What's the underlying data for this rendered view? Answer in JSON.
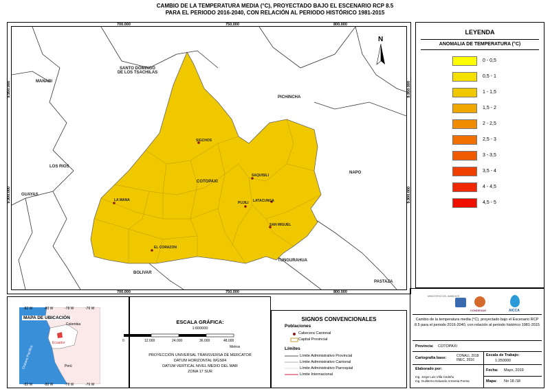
{
  "title_line1": "CAMBIO DE LA TEMPERATURA MEDIA (°C),  PROYECTADO BAJO EL ESCENARIO RCP 8.5",
  "title_line2": "PARA EL PERIODO 2016-2040, CON RELACIÓN AL PERIODO HISTÓRICO 1981-2015",
  "coords": {
    "top": [
      "700.000",
      "750.000",
      "800.000"
    ],
    "bottom": [
      "700.000",
      "750.000",
      "800.000"
    ],
    "left": [
      "9.950.000",
      "9.900.000"
    ],
    "right": [
      "9.950.000",
      "9.900.000"
    ]
  },
  "north": "N",
  "map_labels": {
    "santo_domingo": "SANTO DOMINGO\nDE LOS TSACHILAS",
    "manabi": "MANABI",
    "pichincha": "PICHINCHA",
    "los_rios": "LOS RIOS",
    "guayas": "GUAYAS",
    "napo": "NAPO",
    "cotopaxi": "COTOPAXI",
    "tungurahua": "TUNGURAHUA",
    "bolivar": "BOLIVAR",
    "pastaza": "PASTAZA"
  },
  "cities": {
    "sigchos": "SIGCHOS",
    "saquisili": "SAQUISILI",
    "la_mana": "LA MANA",
    "pujili": "PUJILI",
    "latacunga": "LATACUNGA",
    "san_miguel": "SAN MIGUEL",
    "el_corazon": "EL CORAZON"
  },
  "legend": {
    "title": "LEYENDA",
    "subtitle": "ANOMALIA DE TEMPERATURA (°C)",
    "items": [
      {
        "label": "0 - 0,5",
        "color": "#ffff00"
      },
      {
        "label": "0,5 - 1",
        "color": "#f5e100"
      },
      {
        "label": "1 - 1,5",
        "color": "#f0c800"
      },
      {
        "label": "1,5 - 2",
        "color": "#f0a800"
      },
      {
        "label": "2 - 2,5",
        "color": "#f08c00"
      },
      {
        "label": "2,5 - 3",
        "color": "#f07000"
      },
      {
        "label": "3 - 3,5",
        "color": "#f05a00"
      },
      {
        "label": "3,5 - 4",
        "color": "#f04000"
      },
      {
        "label": "4 - 4,5",
        "color": "#f02800"
      },
      {
        "label": "4,5 - 5",
        "color": "#f01000"
      }
    ]
  },
  "location_map": {
    "title": "MAPA DE UBICACIÓN",
    "colombia": "Colombia",
    "ecuador": "Ecuador",
    "peru": "Perú",
    "ocean": "Océano Pacífico",
    "top_ticks": [
      "-82 W",
      "-80 W",
      "-78 W",
      "-76 W"
    ],
    "bottom_ticks": [
      "-82 W",
      "-80 W",
      "-78 W",
      "-76 W"
    ]
  },
  "scale": {
    "title": "ESCALA GRÁFICA:",
    "ratio": "1:600000",
    "ticks": [
      "0",
      "12.000",
      "24.000",
      "36.000",
      "48.000"
    ],
    "unit": "Metros",
    "projection": "PROYECCIÓN UNIVERSAL TRANSVERSA DE MERCATOR",
    "datum_h": "DATUM HORIZONTAL WGS84",
    "datum_v": "DATUM VERTICAL NIVEL MEDIO DEL MAR",
    "zone": "ZONA 17 SUR"
  },
  "signs": {
    "title": "SIGNOS CONVENCIONALES",
    "poblaciones": "Poblaciones",
    "cabecera": "Cabecera Cantonal",
    "capital": "Capital Provincial",
    "limites": "Límites",
    "lim_prov": "Límite Administrativo Provincial",
    "lim_cant": "Límite Administrativo Cantonal",
    "lim_parr": "Límite Administrativo Parroquial",
    "lim_int": "Límite Internacional"
  },
  "info": {
    "logos": [
      "MINISTERIO DEL AMBIENTE",
      "CONDESAN",
      "AICCA"
    ],
    "desc": "Cambio de la temperatura media (°C),  proyectado bajo el Escenario RCP 8.5 para el periodo 2016-2040, con relación al periodo histórico 1981-2015",
    "provincia_label": "Provincia:",
    "provincia": "COTOPAXI",
    "carto_label": "Cartografía base:",
    "carto": "CONALI, 2018\nINEC, 2016",
    "escala_label": "Escala de Trabajo:",
    "escala": "1:250000",
    "fecha_label": "Fecha:",
    "fecha": "Mayo, 2019",
    "elaborado_label": "Elaborado por:",
    "elaborado1": "Ing. Jorge Luis Villa Cedeño",
    "elaborado2": "Ing. Guillermo Eduardo Armenta Porras",
    "mapa_label": "Mapa:",
    "mapa": "No 18 /18"
  }
}
